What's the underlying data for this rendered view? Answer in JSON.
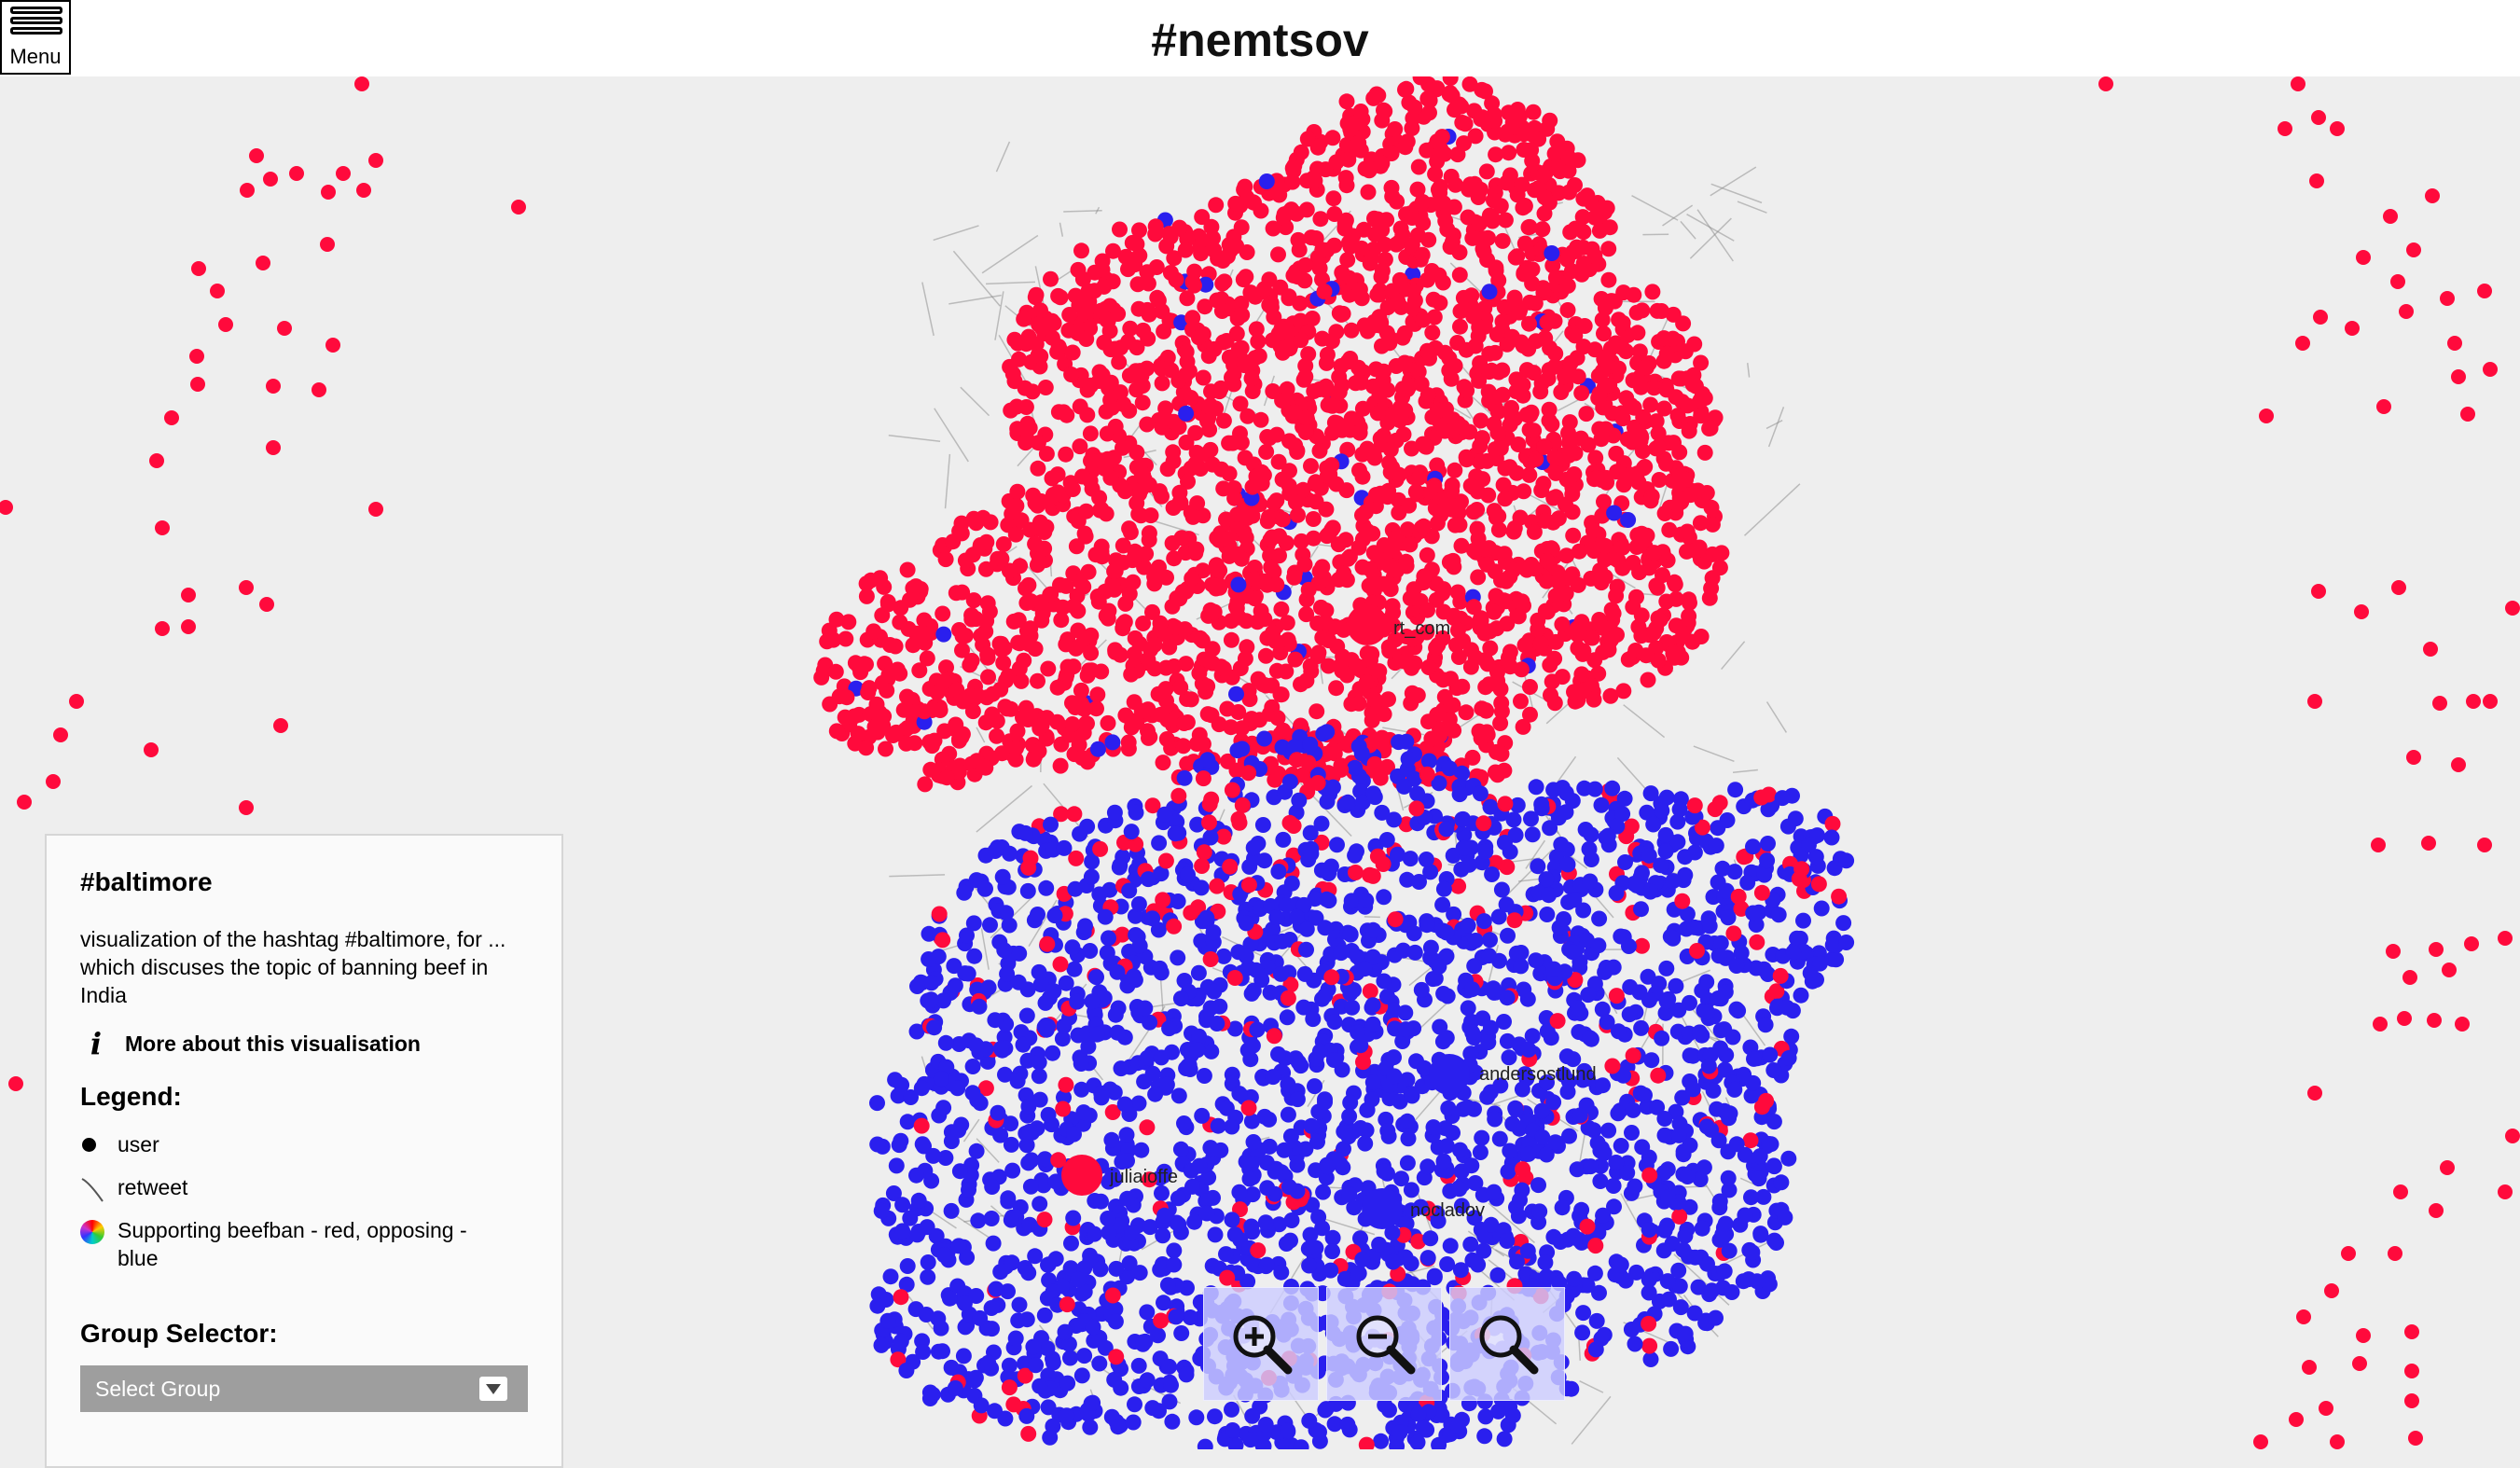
{
  "header": {
    "title": "#nemtsov",
    "menu_label": "Menu"
  },
  "panel": {
    "title": "#baltimore",
    "description": "visualization of the hashtag #baltimore, for ... which discuses the topic of banning beef in India",
    "more_link": "More about this visualisation",
    "legend_title": "Legend:",
    "legend": [
      {
        "label": "user",
        "icon": "node-dot-icon"
      },
      {
        "label": "retweet",
        "icon": "edge-line-icon"
      },
      {
        "label": "Supporting beefban - red, opposing - blue",
        "icon": "color-wheel-icon"
      }
    ],
    "group_title": "Group Selector:",
    "group_select_value": "Select Group"
  },
  "graph": {
    "colors": {
      "support": "#ff0a3c",
      "oppose": "#2a1fee",
      "edge": "#888888"
    },
    "node_labels": [
      "rt_com",
      "andersostlund",
      "juliaioffe",
      "nocladov"
    ]
  },
  "zoom_controls": [
    {
      "name": "zoom-in-button",
      "icon": "zoom-in-icon"
    },
    {
      "name": "zoom-out-button",
      "icon": "zoom-out-icon"
    },
    {
      "name": "zoom-reset-button",
      "icon": "magnifier-icon"
    }
  ]
}
